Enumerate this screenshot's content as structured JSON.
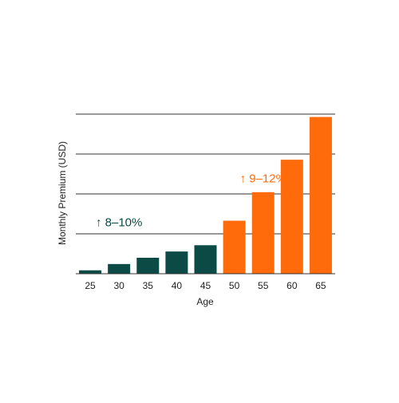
{
  "chart_data": {
    "type": "bar",
    "title": "",
    "xlabel": "Age",
    "ylabel": "Monthly Premium (USD)",
    "categories": [
      "25",
      "30",
      "35",
      "40",
      "45",
      "50",
      "55",
      "60",
      "65"
    ],
    "values": [
      0.6,
      1.7,
      2.8,
      3.9,
      5.0,
      9.3,
      14.3,
      20.0,
      27.5
    ],
    "ylim": [
      0,
      28
    ],
    "grid": true,
    "colors": {
      "group_low": "#0b4a45",
      "group_high": "#ff6b0a",
      "grid": "#333333",
      "text": "#222222"
    },
    "annotations": [
      {
        "text": "↑ 8–10%",
        "color": "#0b4a45",
        "category": "30",
        "value": 8.3
      },
      {
        "text": "↑ 9–12%",
        "color": "#ff6b0a",
        "category": "55",
        "value": 16.0
      }
    ],
    "highlight_from_category": "50"
  }
}
